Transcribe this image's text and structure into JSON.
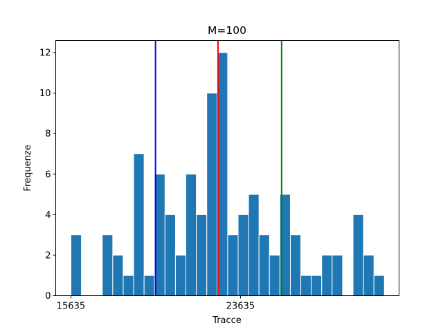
{
  "chart_data": {
    "type": "bar",
    "title": "M=100",
    "xlabel": "Tracce",
    "ylabel": "Frequenze",
    "xlim": [
      14917,
      31117
    ],
    "ylim": [
      0,
      12.6
    ],
    "x_ticks": [
      15635,
      23635
    ],
    "x_tick_labels": [
      "15635",
      "23635"
    ],
    "y_ticks": [
      0,
      2,
      4,
      6,
      8,
      10,
      12
    ],
    "y_tick_labels": [
      "0",
      "2",
      "4",
      "6",
      "8",
      "10",
      "12"
    ],
    "grid": false,
    "bar_color": "#1f77b4",
    "bar_edge_color": "#ffffff",
    "bins": [
      {
        "x0": 15635,
        "x1": 16128,
        "count": 3
      },
      {
        "x0": 16128,
        "x1": 16621,
        "count": 0
      },
      {
        "x0": 16621,
        "x1": 17114,
        "count": 0
      },
      {
        "x0": 17114,
        "x1": 17607,
        "count": 3
      },
      {
        "x0": 17607,
        "x1": 18100,
        "count": 2
      },
      {
        "x0": 18100,
        "x1": 18593,
        "count": 1
      },
      {
        "x0": 18593,
        "x1": 19086,
        "count": 7
      },
      {
        "x0": 19086,
        "x1": 19579,
        "count": 1
      },
      {
        "x0": 19579,
        "x1": 20072,
        "count": 6
      },
      {
        "x0": 20072,
        "x1": 20565,
        "count": 4
      },
      {
        "x0": 20565,
        "x1": 21058,
        "count": 2
      },
      {
        "x0": 21058,
        "x1": 21551,
        "count": 6
      },
      {
        "x0": 21551,
        "x1": 22044,
        "count": 4
      },
      {
        "x0": 22044,
        "x1": 22537,
        "count": 10
      },
      {
        "x0": 22537,
        "x1": 23030,
        "count": 12
      },
      {
        "x0": 23030,
        "x1": 23523,
        "count": 3
      },
      {
        "x0": 23523,
        "x1": 24016,
        "count": 4
      },
      {
        "x0": 24016,
        "x1": 24509,
        "count": 5
      },
      {
        "x0": 24509,
        "x1": 25002,
        "count": 3
      },
      {
        "x0": 25002,
        "x1": 25495,
        "count": 2
      },
      {
        "x0": 25495,
        "x1": 25988,
        "count": 5
      },
      {
        "x0": 25988,
        "x1": 26481,
        "count": 3
      },
      {
        "x0": 26481,
        "x1": 26974,
        "count": 1
      },
      {
        "x0": 26974,
        "x1": 27467,
        "count": 1
      },
      {
        "x0": 27467,
        "x1": 27960,
        "count": 2
      },
      {
        "x0": 27960,
        "x1": 28453,
        "count": 2
      },
      {
        "x0": 28453,
        "x1": 28946,
        "count": 0
      },
      {
        "x0": 28946,
        "x1": 29439,
        "count": 4
      },
      {
        "x0": 29439,
        "x1": 29932,
        "count": 2
      },
      {
        "x0": 29932,
        "x1": 30425,
        "count": 1
      }
    ],
    "vertical_lines": [
      {
        "x": 19625,
        "color": "#0000ff"
      },
      {
        "x": 22575,
        "color": "#ff0000"
      },
      {
        "x": 25575,
        "color": "#008000"
      }
    ]
  }
}
